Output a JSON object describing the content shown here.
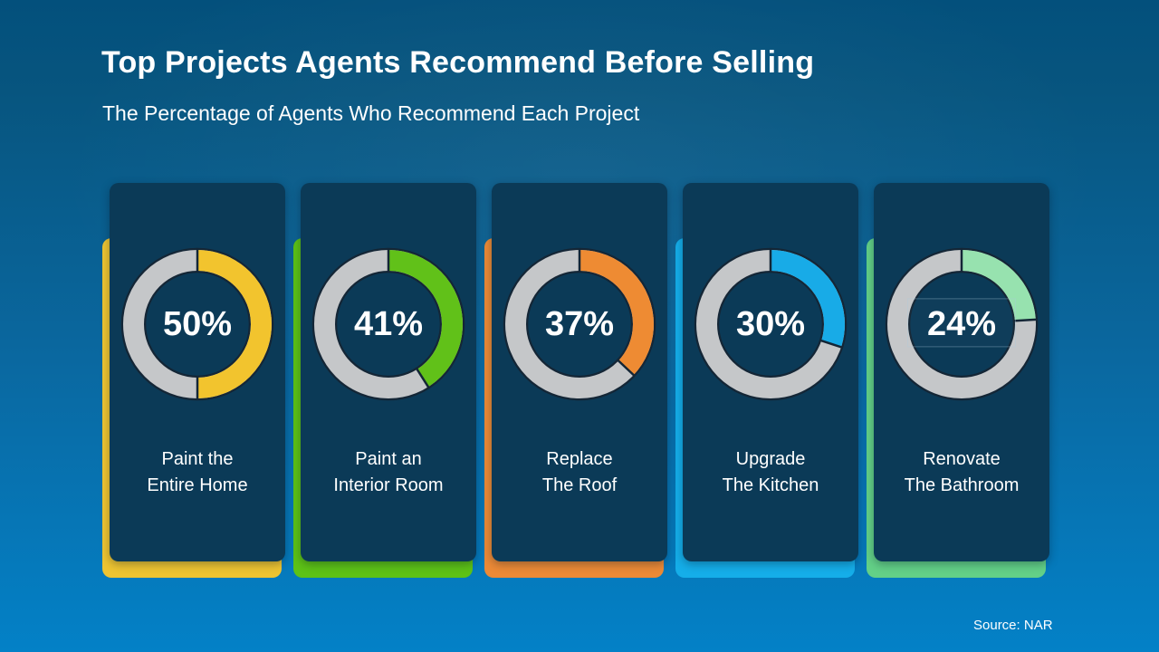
{
  "header": {
    "title": "Top Projects Agents Recommend Before Selling",
    "subtitle": "The Percentage of Agents Who Recommend Each Project",
    "source": "Source: NAR"
  },
  "colors": {
    "background_top": "#03507c",
    "background_bottom": "#0381c7",
    "card_background": "#0b3a57",
    "donut_track": "#c5c7c9",
    "donut_outline": "#142636",
    "text": "#ffffff"
  },
  "chart_data": {
    "type": "pie",
    "variant": "donut-multiples",
    "title": "Top Projects Agents Recommend Before Selling",
    "subtitle": "The Percentage of Agents Who Recommend Each Project",
    "source": "Source: NAR",
    "unit": "%",
    "value_range": [
      0,
      100
    ],
    "legend": "none",
    "items": [
      {
        "label": "Paint the Entire Home",
        "label_line1": "Paint the",
        "label_line2": "Entire Home",
        "value": 50,
        "value_label": "50%",
        "donut_color": "#f2c42e",
        "accent_color": "#eec431",
        "textbox": false
      },
      {
        "label": "Paint an Interior Room",
        "label_line1": "Paint an",
        "label_line2": "Interior Room",
        "value": 41,
        "value_label": "41%",
        "donut_color": "#61c119",
        "accent_color": "#5dc216",
        "textbox": false
      },
      {
        "label": "Replace The Roof",
        "label_line1": "Replace",
        "label_line2": "The Roof",
        "value": 37,
        "value_label": "37%",
        "donut_color": "#ee8b33",
        "accent_color": "#ec8a36",
        "textbox": false
      },
      {
        "label": "Upgrade The Kitchen",
        "label_line1": "Upgrade",
        "label_line2": "The Kitchen",
        "value": 30,
        "value_label": "30%",
        "donut_color": "#18abe7",
        "accent_color": "#15aee9",
        "textbox": false
      },
      {
        "label": "Renovate The Bathroom",
        "label_line1": "Renovate",
        "label_line2": "The Bathroom",
        "value": 24,
        "value_label": "24%",
        "donut_color": "#97e2af",
        "accent_color": "#63d087",
        "textbox": true
      }
    ]
  }
}
